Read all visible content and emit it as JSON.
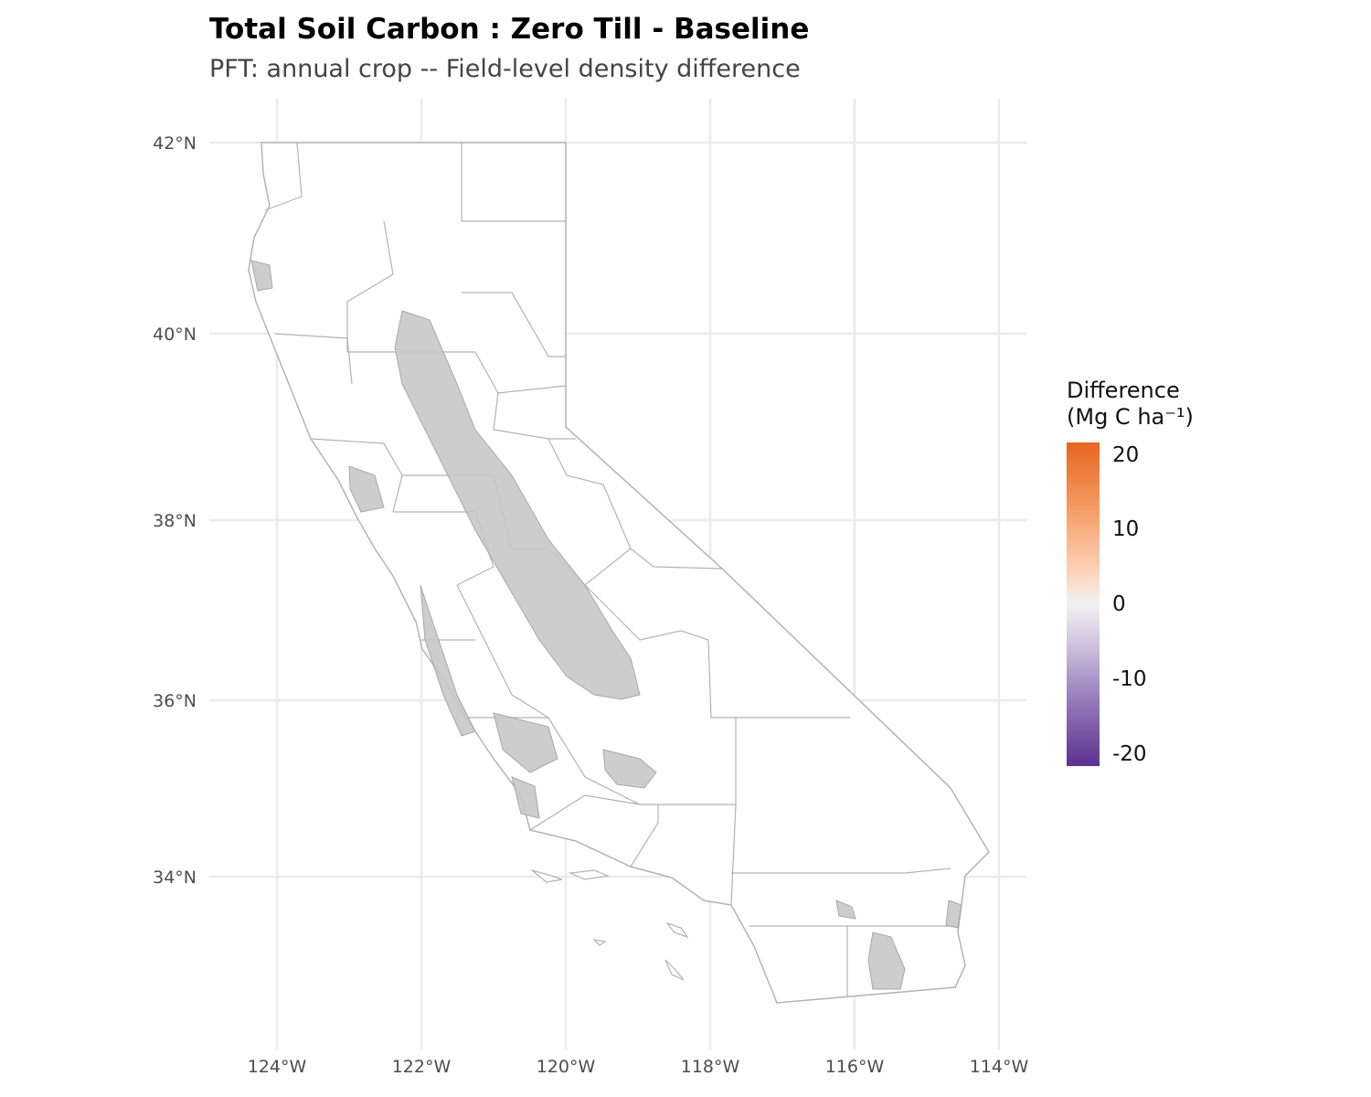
{
  "title": "Total Soil Carbon : Zero Till - Baseline",
  "subtitle": "PFT: annual crop  -- Field-level density difference",
  "map": {
    "region": "California",
    "border_color": "#b3b3b3",
    "field_color": "#a8a8a8",
    "grid_color": "#ebebeb",
    "lat_ticks": [
      "42°N",
      "40°N",
      "38°N",
      "36°N",
      "34°N"
    ],
    "lon_ticks": [
      "124°W",
      "122°W",
      "120°W",
      "118°W",
      "116°W",
      "114°W"
    ]
  },
  "legend": {
    "title_line1": "Difference",
    "title_line2": "(Mg C ha⁻¹)",
    "labels": [
      "20",
      "10",
      "0",
      "-10",
      "-20"
    ],
    "colors": {
      "high": "#e6661f",
      "mid": "#f2f2f2",
      "low": "#5c3190"
    }
  }
}
